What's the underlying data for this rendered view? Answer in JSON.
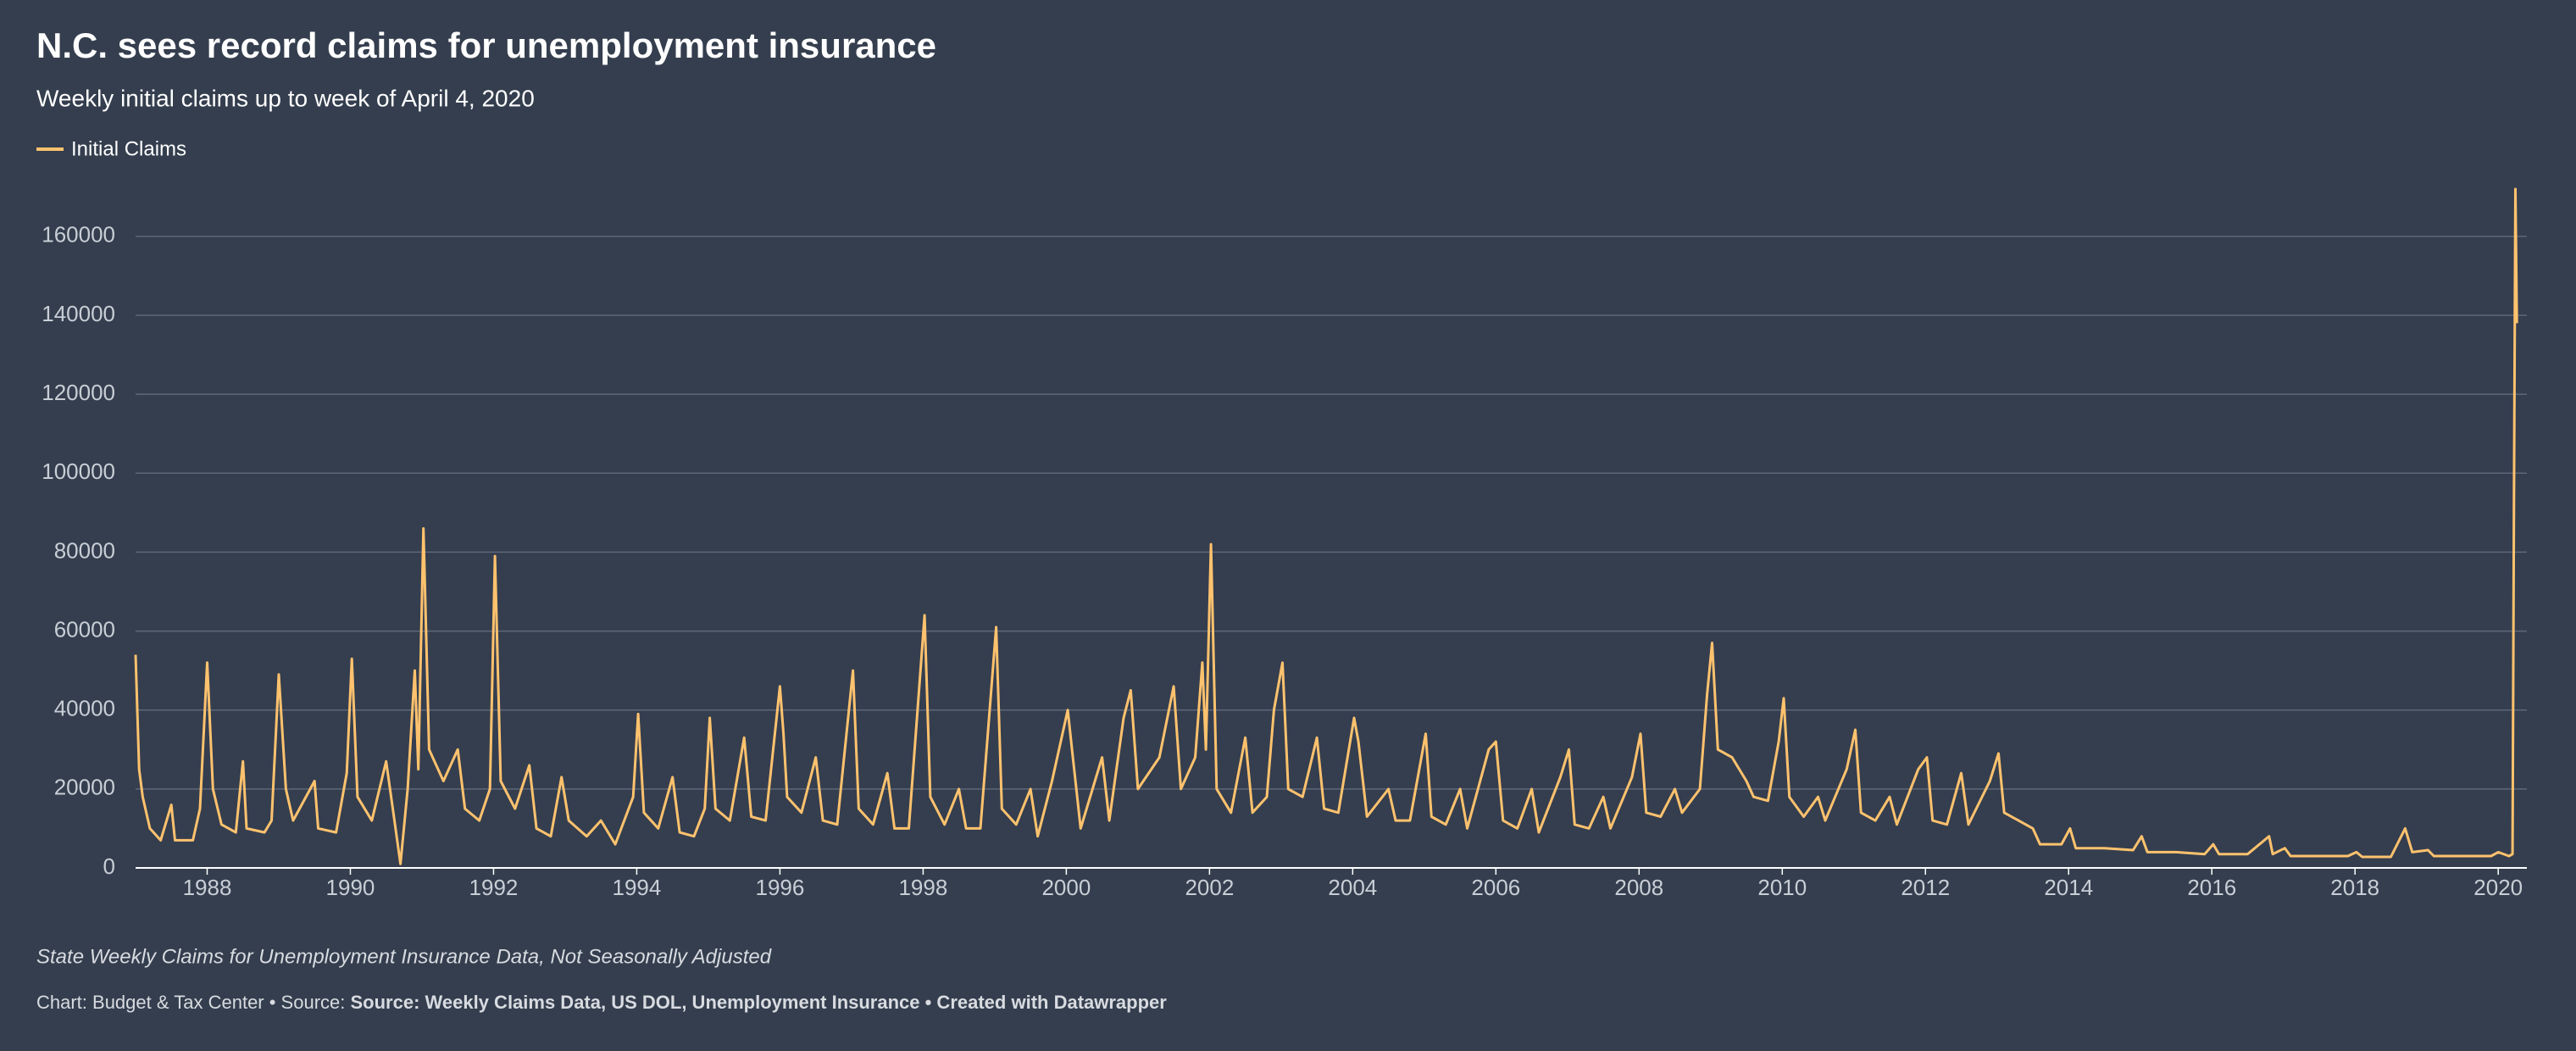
{
  "chart_data": {
    "type": "line",
    "title": "N.C. sees record claims for unemployment insurance",
    "subtitle": "Weekly initial claims up to week of April 4, 2020",
    "notes": "State Weekly Claims for Unemployment Insurance Data, Not Seasonally Adjusted",
    "footer": {
      "prefix": "Chart: Budget & Tax Center • Source: ",
      "source": "Source: Weekly Claims Data, US DOL, Unemployment Insurance • Created with Datawrapper"
    },
    "x": [
      1987.0,
      1987.05,
      1987.1,
      1987.2,
      1987.35,
      1987.5,
      1987.55,
      1987.8,
      1987.9,
      1988.0,
      1988.08,
      1988.2,
      1988.4,
      1988.5,
      1988.55,
      1988.8,
      1988.9,
      1989.0,
      1989.1,
      1989.2,
      1989.5,
      1989.55,
      1989.8,
      1989.95,
      1990.02,
      1990.1,
      1990.3,
      1990.5,
      1990.6,
      1990.7,
      1990.8,
      1990.9,
      1990.95,
      1991.02,
      1991.1,
      1991.3,
      1991.5,
      1991.6,
      1991.8,
      1991.95,
      1992.02,
      1992.1,
      1992.3,
      1992.5,
      1992.6,
      1992.8,
      1992.95,
      1993.05,
      1993.3,
      1993.5,
      1993.7,
      1993.95,
      1994.02,
      1994.1,
      1994.3,
      1994.5,
      1994.6,
      1994.8,
      1994.95,
      1995.02,
      1995.1,
      1995.3,
      1995.5,
      1995.6,
      1995.8,
      1996.0,
      1996.05,
      1996.1,
      1996.3,
      1996.5,
      1996.6,
      1996.8,
      1997.02,
      1997.1,
      1997.3,
      1997.5,
      1997.6,
      1997.8,
      1998.02,
      1998.1,
      1998.3,
      1998.5,
      1998.6,
      1998.8,
      1999.02,
      1999.1,
      1999.3,
      1999.5,
      1999.6,
      1999.8,
      2000.02,
      2000.08,
      2000.2,
      2000.5,
      2000.6,
      2000.8,
      2000.9,
      2001.0,
      2001.3,
      2001.5,
      2001.6,
      2001.8,
      2001.9,
      2001.95,
      2002.02,
      2002.1,
      2002.3,
      2002.5,
      2002.6,
      2002.8,
      2002.9,
      2003.02,
      2003.1,
      2003.3,
      2003.5,
      2003.6,
      2003.8,
      2004.02,
      2004.08,
      2004.2,
      2004.5,
      2004.6,
      2004.8,
      2005.02,
      2005.1,
      2005.3,
      2005.5,
      2005.6,
      2005.9,
      2006.0,
      2006.1,
      2006.3,
      2006.5,
      2006.6,
      2006.9,
      2007.02,
      2007.1,
      2007.3,
      2007.5,
      2007.6,
      2007.9,
      2008.02,
      2008.1,
      2008.3,
      2008.5,
      2008.6,
      2008.85,
      2008.95,
      2009.02,
      2009.1,
      2009.3,
      2009.5,
      2009.6,
      2009.8,
      2009.95,
      2010.02,
      2010.1,
      2010.3,
      2010.5,
      2010.6,
      2010.9,
      2011.02,
      2011.1,
      2011.3,
      2011.5,
      2011.6,
      2011.9,
      2012.02,
      2012.1,
      2012.3,
      2012.5,
      2012.6,
      2012.9,
      2013.02,
      2013.1,
      2013.3,
      2013.5,
      2013.6,
      2013.9,
      2014.02,
      2014.1,
      2014.5,
      2014.9,
      2015.02,
      2015.1,
      2015.5,
      2015.9,
      2016.02,
      2016.1,
      2016.5,
      2016.8,
      2016.85,
      2017.02,
      2017.1,
      2017.5,
      2017.9,
      2018.02,
      2018.1,
      2018.5,
      2018.7,
      2018.8,
      2019.02,
      2019.1,
      2019.5,
      2019.9,
      2020.0,
      2020.15,
      2020.2,
      2020.22,
      2020.24,
      2020.26
    ],
    "series": [
      {
        "name": "Initial Claims",
        "color": "#ffc26e",
        "values": [
          54000,
          25000,
          18000,
          10000,
          7000,
          16000,
          7000,
          7000,
          15000,
          52000,
          20000,
          11000,
          9000,
          27000,
          10000,
          9000,
          12000,
          49000,
          20000,
          12000,
          22000,
          10000,
          9000,
          24000,
          53000,
          18000,
          12000,
          27000,
          14000,
          1000,
          20000,
          50000,
          25000,
          86000,
          30000,
          22000,
          30000,
          15000,
          12000,
          20000,
          79000,
          22000,
          15000,
          26000,
          10000,
          8000,
          23000,
          12000,
          8000,
          12000,
          6000,
          18000,
          39000,
          14000,
          10000,
          23000,
          9000,
          8000,
          15000,
          38000,
          15000,
          12000,
          33000,
          13000,
          12000,
          46000,
          34000,
          18000,
          14000,
          28000,
          12000,
          11000,
          50000,
          15000,
          11000,
          24000,
          10000,
          10000,
          64000,
          18000,
          11000,
          20000,
          10000,
          10000,
          61000,
          15000,
          11000,
          20000,
          8000,
          22000,
          40000,
          30000,
          10000,
          28000,
          12000,
          38000,
          45000,
          20000,
          28000,
          46000,
          20000,
          28000,
          52000,
          30000,
          82000,
          20000,
          14000,
          33000,
          14000,
          18000,
          40000,
          52000,
          20000,
          18000,
          33000,
          15000,
          14000,
          38000,
          32000,
          13000,
          20000,
          12000,
          12000,
          34000,
          13000,
          11000,
          20000,
          10000,
          30000,
          32000,
          12000,
          10000,
          20000,
          9000,
          23000,
          30000,
          11000,
          10000,
          18000,
          10000,
          23000,
          34000,
          14000,
          13000,
          20000,
          14000,
          20000,
          44000,
          57000,
          30000,
          28000,
          22000,
          18000,
          17000,
          32000,
          43000,
          18000,
          13000,
          18000,
          12000,
          25000,
          35000,
          14000,
          12000,
          18000,
          11000,
          25000,
          28000,
          12000,
          11000,
          24000,
          11000,
          22000,
          29000,
          14000,
          12000,
          10000,
          6000,
          6000,
          10000,
          5000,
          5000,
          4500,
          8000,
          4000,
          4000,
          3500,
          6000,
          3500,
          3500,
          8000,
          3500,
          5000,
          3000,
          3000,
          3000,
          4000,
          2800,
          2800,
          10000,
          4000,
          4500,
          3000,
          3000,
          3000,
          4000,
          3000,
          3500,
          94000,
          172000,
          138000
        ]
      }
    ],
    "xlim": [
      1987,
      2020.4
    ],
    "xticks": [
      1988,
      1990,
      1992,
      1994,
      1996,
      1998,
      2000,
      2002,
      2004,
      2006,
      2008,
      2010,
      2012,
      2014,
      2016,
      2018,
      2020
    ],
    "ylim": [
      0,
      175000
    ],
    "yticks": [
      0,
      20000,
      40000,
      60000,
      80000,
      100000,
      120000,
      140000,
      160000
    ],
    "grid": true
  }
}
